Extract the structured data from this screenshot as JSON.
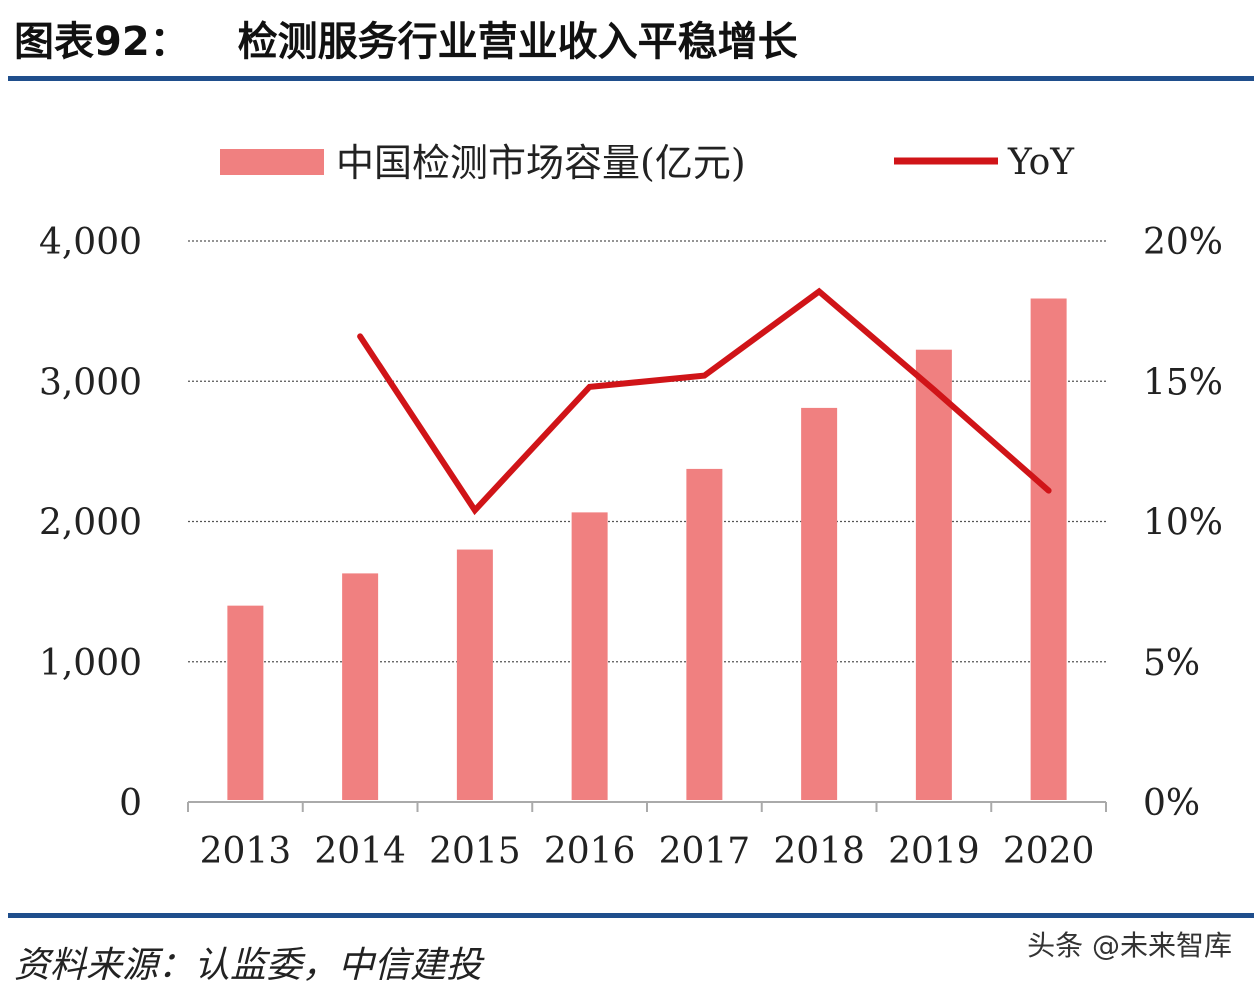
{
  "header": {
    "label": "图表92：",
    "title": "检测服务行业营业收入平稳增长"
  },
  "footer": {
    "source": "资料来源：认监委，中信建投",
    "watermark": "头条 @未来智库"
  },
  "colors": {
    "rule": "#1f4e8c",
    "bar": "#f08080",
    "line": "#d01418",
    "grid": "#555555",
    "text": "#222222"
  },
  "chart_data": {
    "type": "bar",
    "categories": [
      "2013",
      "2014",
      "2015",
      "2016",
      "2017",
      "2018",
      "2019",
      "2020"
    ],
    "series": [
      {
        "name": "中国检测市场容量(亿元)",
        "type": "bar",
        "axis": "left",
        "values": [
          1400,
          1630,
          1800,
          2065,
          2375,
          2810,
          3225,
          3590
        ]
      },
      {
        "name": "YoY",
        "type": "line",
        "axis": "right",
        "values": [
          null,
          16.6,
          10.4,
          14.8,
          15.2,
          18.2,
          14.7,
          11.1
        ]
      }
    ],
    "left_axis": {
      "min": 0,
      "max": 4000,
      "step": 1000,
      "tick_labels": [
        "0",
        "1,000",
        "2,000",
        "3,000",
        "4,000"
      ]
    },
    "right_axis": {
      "min": 0,
      "max": 20,
      "step": 5,
      "tick_labels": [
        "0%",
        "5%",
        "10%",
        "15%",
        "20%"
      ]
    },
    "grid": true,
    "grid_style": "dotted",
    "legend_position": "top"
  }
}
